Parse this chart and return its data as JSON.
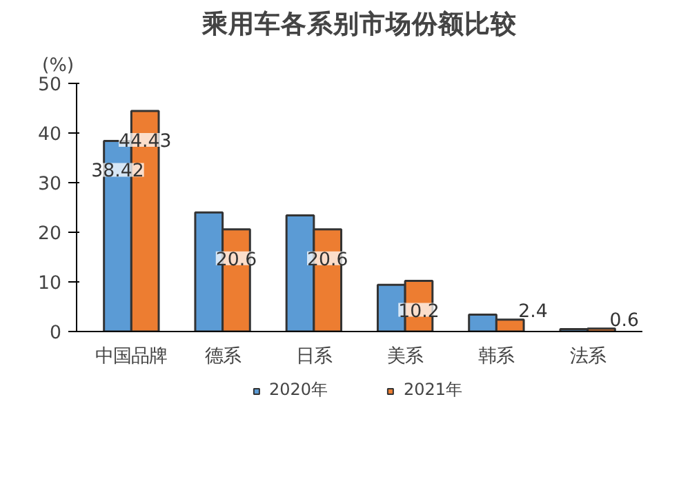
{
  "chart_data": {
    "type": "bar",
    "title": "乘用车各系别市场份额比较",
    "ylabel": "(%)",
    "categories": [
      "中国品牌",
      "德系",
      "日系",
      "美系",
      "韩系",
      "法系"
    ],
    "series": [
      {
        "name": "2020年",
        "color": "#5b9bd5",
        "values": [
          38.42,
          24.0,
          23.4,
          9.4,
          3.4,
          0.5
        ],
        "value_labels": [
          "38.42",
          null,
          null,
          null,
          null,
          null
        ]
      },
      {
        "name": "2021年",
        "color": "#ed7d31",
        "values": [
          44.43,
          20.6,
          20.6,
          10.2,
          2.4,
          0.6
        ],
        "value_labels": [
          "44.43",
          "20.6",
          "20.6",
          "10.2",
          "2.4",
          "0.6"
        ]
      }
    ],
    "ylim": [
      0,
      50
    ],
    "yticks": [
      0,
      10,
      20,
      30,
      40,
      50
    ],
    "grid": false,
    "legend": "bottom"
  }
}
